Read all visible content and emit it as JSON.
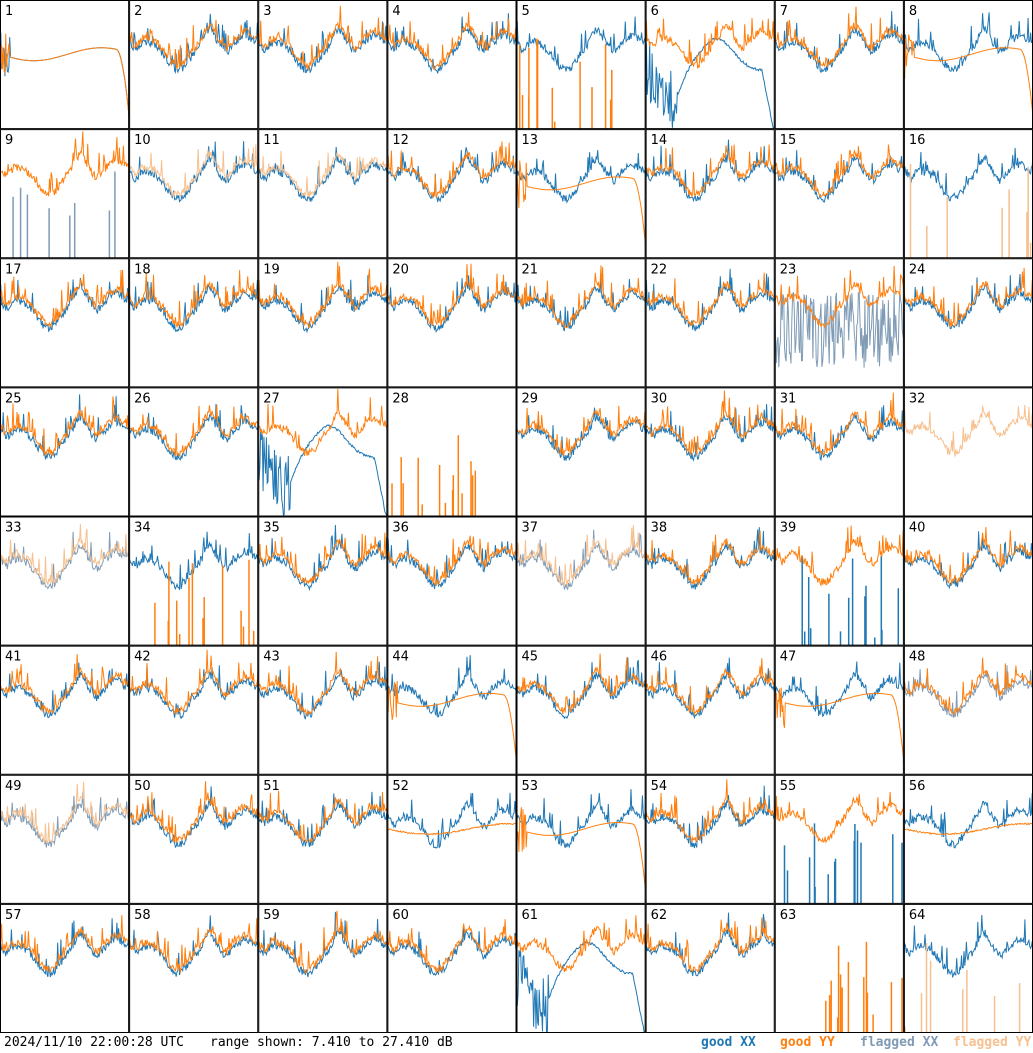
{
  "footer": {
    "timestamp": "2024/11/10 22:00:28 UTC",
    "range_text": "range shown: 7.410 to 27.410 dB"
  },
  "legend": [
    {
      "label": "good XX",
      "color": "#1f77b4"
    },
    {
      "label": "good YY",
      "color": "#ff7f0e"
    },
    {
      "label": "flagged XX",
      "color": "#7f9bb5"
    },
    {
      "label": "flagged YY",
      "color": "#f7c08f"
    }
  ],
  "chart_data": {
    "type": "line",
    "grid": "8x8 small multiples",
    "ylim": [
      7.41,
      27.41
    ],
    "yunit": "dB",
    "panels": [
      {
        "id": 1,
        "xx": "dip",
        "yy": "dip"
      },
      {
        "id": 2,
        "xx": "good",
        "yy": "good"
      },
      {
        "id": 3,
        "xx": "good",
        "yy": "good"
      },
      {
        "id": 4,
        "xx": "good",
        "yy": "good"
      },
      {
        "id": 5,
        "xx": "good",
        "yy": "spikes"
      },
      {
        "id": 6,
        "xx": "hump",
        "yy": "good"
      },
      {
        "id": 7,
        "xx": "good",
        "yy": "good"
      },
      {
        "id": 8,
        "xx": "good",
        "yy": "dip"
      },
      {
        "id": 9,
        "xx": "flagged-spikes",
        "yy": "good"
      },
      {
        "id": 10,
        "xx": "good",
        "yy": "flagged"
      },
      {
        "id": 11,
        "xx": "good",
        "yy": "flagged"
      },
      {
        "id": 12,
        "xx": "good",
        "yy": "good"
      },
      {
        "id": 13,
        "xx": "good",
        "yy": "dip"
      },
      {
        "id": 14,
        "xx": "good",
        "yy": "good"
      },
      {
        "id": 15,
        "xx": "good",
        "yy": "good"
      },
      {
        "id": 16,
        "xx": "good",
        "yy": "flagged-spikes"
      },
      {
        "id": 17,
        "xx": "good",
        "yy": "good"
      },
      {
        "id": 18,
        "xx": "good",
        "yy": "good"
      },
      {
        "id": 19,
        "xx": "good",
        "yy": "good"
      },
      {
        "id": 20,
        "xx": "good",
        "yy": "good"
      },
      {
        "id": 21,
        "xx": "good",
        "yy": "good"
      },
      {
        "id": 22,
        "xx": "good",
        "yy": "good"
      },
      {
        "id": 23,
        "xx": "flagged-noisy",
        "yy": "good"
      },
      {
        "id": 24,
        "xx": "good",
        "yy": "good"
      },
      {
        "id": 25,
        "xx": "good",
        "yy": "good"
      },
      {
        "id": 26,
        "xx": "good",
        "yy": "good"
      },
      {
        "id": 27,
        "xx": "hump",
        "yy": "good"
      },
      {
        "id": 28,
        "xx": "none",
        "yy": "spikes"
      },
      {
        "id": 29,
        "xx": "good",
        "yy": "good"
      },
      {
        "id": 30,
        "xx": "good",
        "yy": "good"
      },
      {
        "id": 31,
        "xx": "good",
        "yy": "good"
      },
      {
        "id": 32,
        "xx": "none",
        "yy": "flagged"
      },
      {
        "id": 33,
        "xx": "flagged",
        "yy": "flagged"
      },
      {
        "id": 34,
        "xx": "good",
        "yy": "spikes"
      },
      {
        "id": 35,
        "xx": "good",
        "yy": "good"
      },
      {
        "id": 36,
        "xx": "good",
        "yy": "good"
      },
      {
        "id": 37,
        "xx": "flagged",
        "yy": "flagged"
      },
      {
        "id": 38,
        "xx": "good",
        "yy": "good"
      },
      {
        "id": 39,
        "xx": "spikes",
        "yy": "good"
      },
      {
        "id": 40,
        "xx": "good",
        "yy": "good"
      },
      {
        "id": 41,
        "xx": "good",
        "yy": "good"
      },
      {
        "id": 42,
        "xx": "good",
        "yy": "good"
      },
      {
        "id": 43,
        "xx": "good",
        "yy": "good"
      },
      {
        "id": 44,
        "xx": "good",
        "yy": "dip"
      },
      {
        "id": 45,
        "xx": "good",
        "yy": "good"
      },
      {
        "id": 46,
        "xx": "good",
        "yy": "good"
      },
      {
        "id": 47,
        "xx": "good",
        "yy": "dip"
      },
      {
        "id": 48,
        "xx": "flagged",
        "yy": "good"
      },
      {
        "id": 49,
        "xx": "flagged",
        "yy": "flagged"
      },
      {
        "id": 50,
        "xx": "good",
        "yy": "good"
      },
      {
        "id": 51,
        "xx": "good",
        "yy": "good"
      },
      {
        "id": 52,
        "xx": "good",
        "yy": "smooth"
      },
      {
        "id": 53,
        "xx": "good",
        "yy": "dip"
      },
      {
        "id": 54,
        "xx": "good",
        "yy": "good"
      },
      {
        "id": 55,
        "xx": "spikes",
        "yy": "good"
      },
      {
        "id": 56,
        "xx": "good",
        "yy": "smooth"
      },
      {
        "id": 57,
        "xx": "good",
        "yy": "good"
      },
      {
        "id": 58,
        "xx": "good",
        "yy": "good"
      },
      {
        "id": 59,
        "xx": "good",
        "yy": "good"
      },
      {
        "id": 60,
        "xx": "good",
        "yy": "good"
      },
      {
        "id": 61,
        "xx": "hump",
        "yy": "good"
      },
      {
        "id": 62,
        "xx": "good",
        "yy": "good"
      },
      {
        "id": 63,
        "xx": "none",
        "yy": "spikes"
      },
      {
        "id": 64,
        "xx": "good",
        "yy": "flagged-spikes"
      }
    ]
  }
}
